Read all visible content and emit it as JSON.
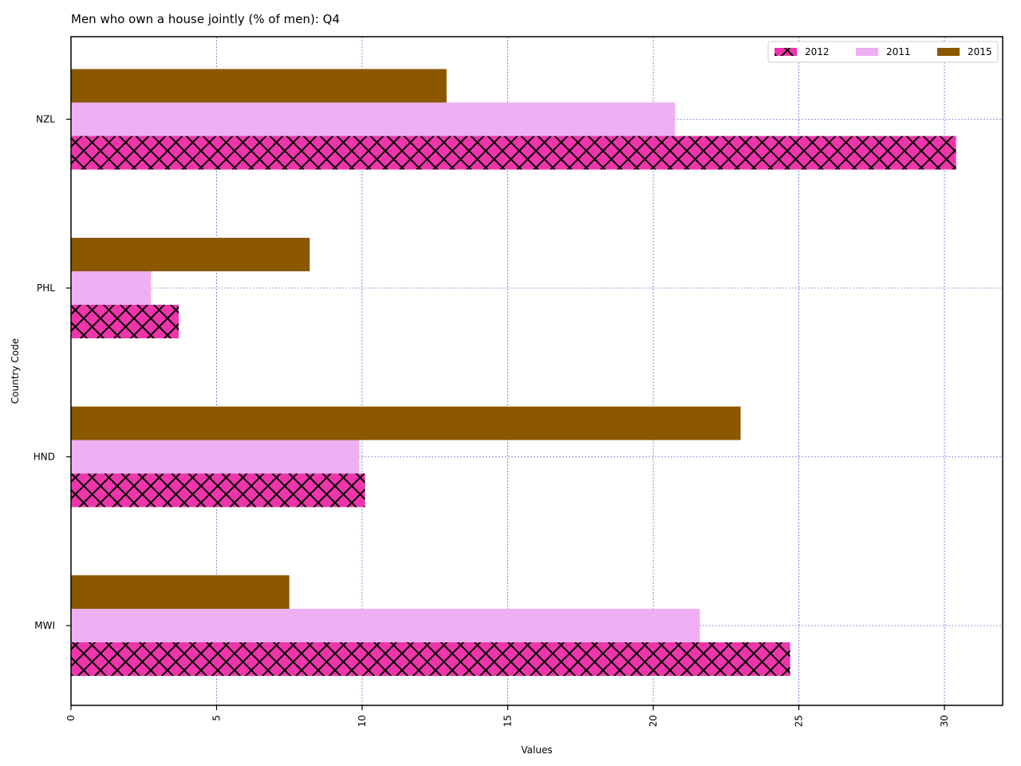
{
  "chart_data": {
    "type": "bar",
    "orientation": "horizontal",
    "title": "Men who own a house jointly (% of men): Q4",
    "xlabel": "Values",
    "ylabel": "Country Code",
    "categories": [
      "MWI",
      "HND",
      "PHL",
      "NZL"
    ],
    "series": [
      {
        "name": "2012",
        "values": [
          24.7,
          10.1,
          3.7,
          30.4
        ],
        "color": "#ee35aa",
        "hatch": "cross"
      },
      {
        "name": "2011",
        "values": [
          21.6,
          9.9,
          2.75,
          20.75
        ],
        "color": "#eeb0f2",
        "hatch": "none"
      },
      {
        "name": "2015",
        "values": [
          7.5,
          23.0,
          8.2,
          12.9
        ],
        "color": "#8b5800",
        "hatch": "none"
      }
    ],
    "xlim": [
      0,
      32
    ],
    "xticks": [
      0,
      5,
      10,
      15,
      20,
      25,
      30
    ],
    "grid": true,
    "grid_color": "#3333cc",
    "legend_position": "top-right"
  }
}
